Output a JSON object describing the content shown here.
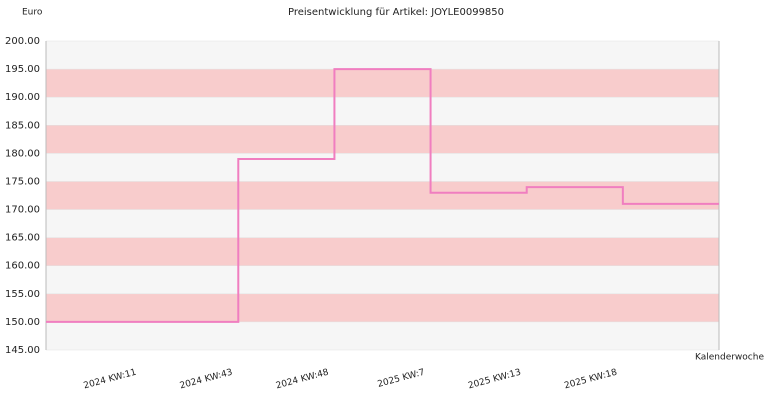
{
  "chart_data": {
    "type": "step",
    "title": "Preisentwicklung für Artikel: JOYLE0099850",
    "y_label": "Euro",
    "x_label": "Kalenderwoche",
    "categories": [
      "2024 KW:11",
      "2024 KW:43",
      "2024 KW:48",
      "2025 KW:7",
      "2025 KW:13",
      "2025 KW:18"
    ],
    "values": [
      150,
      179,
      195,
      173,
      174,
      171
    ],
    "color": "#f07ec0",
    "band_colors": [
      "#f6f6f6",
      "#f8cccc"
    ],
    "ylim": [
      145,
      200
    ],
    "yticks": [
      {
        "value": 145,
        "label": "145.00"
      },
      {
        "value": 150,
        "label": "150.00"
      },
      {
        "value": 155,
        "label": "155.00"
      },
      {
        "value": 160,
        "label": "160.00"
      },
      {
        "value": 165,
        "label": "165.00"
      },
      {
        "value": 170,
        "label": "170.00"
      },
      {
        "value": 175,
        "label": "175.00"
      },
      {
        "value": 180,
        "label": "180.00"
      },
      {
        "value": 185,
        "label": "185.00"
      },
      {
        "value": 190,
        "label": "190.00"
      },
      {
        "value": 195,
        "label": "195.00"
      },
      {
        "value": 200,
        "label": "200.00"
      }
    ]
  }
}
